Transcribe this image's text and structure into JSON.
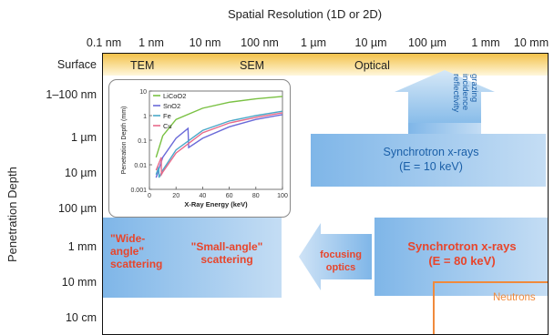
{
  "x_axis": {
    "title": "Spatial Resolution (1D or 2D)",
    "ticks": [
      "0.1 nm",
      "1 nm",
      "10 nm",
      "100 nm",
      "1 µm",
      "10 µm",
      "100 µm",
      "1 mm",
      "10 mm"
    ]
  },
  "y_axis": {
    "title": "Penetration Depth",
    "ticks": [
      "Surface",
      "1–100 nm",
      "1 µm",
      "10 µm",
      "100 µm",
      "1 mm",
      "10 mm",
      "10 cm"
    ]
  },
  "surface_band": {
    "labels": [
      "TEM",
      "SEM",
      "Optical"
    ]
  },
  "synchrotron_10": {
    "line1": "Synchrotron x-rays",
    "line2": "(E = 10 keV)"
  },
  "grazing": {
    "line1": "grazing",
    "line2": "incidence",
    "line3": "reflectivity"
  },
  "synchrotron_80": {
    "line1": "Synchrotron x-rays",
    "line2": "(E = 80 keV)"
  },
  "focusing": {
    "line1": "focusing",
    "line2": "optics"
  },
  "wide_angle": {
    "line1": "\"Wide-",
    "line2": "angle\"",
    "line3": "scattering"
  },
  "small_angle": {
    "line1": "\"Small-angle\"",
    "line2": "scattering"
  },
  "neutrons": "Neutrons",
  "colors": {
    "red_text": "#e8452b",
    "blue_text": "#1a5fa8",
    "surface": "#f3c24a",
    "neutrons": "#f08a3c"
  },
  "chart_data": {
    "type": "line",
    "xlabel": "X-Ray Energy (keV)",
    "ylabel": "Penetration Depth (mm)",
    "xlim": [
      0,
      100
    ],
    "ylim": [
      0.001,
      10
    ],
    "yscale": "log",
    "xticks": [
      "0",
      "20",
      "40",
      "60",
      "80",
      "100"
    ],
    "yticks": [
      "0.001",
      "0.01",
      "0.1",
      "1",
      "10"
    ],
    "legend_position": "top-left",
    "series": [
      {
        "name": "LiCoO2",
        "color": "#7ac143",
        "x": [
          5,
          10,
          20,
          40,
          60,
          80,
          100
        ],
        "y": [
          0.02,
          0.15,
          0.7,
          2.0,
          3.5,
          4.8,
          6.0
        ]
      },
      {
        "name": "SnO2",
        "color": "#6a6ad8",
        "x": [
          5,
          10,
          20,
          29,
          29.5,
          40,
          60,
          80,
          100
        ],
        "y": [
          0.003,
          0.02,
          0.12,
          0.3,
          0.05,
          0.12,
          0.35,
          0.7,
          1.1
        ]
      },
      {
        "name": "Fe",
        "color": "#4aa8c8",
        "x": [
          5,
          7,
          7.2,
          10,
          20,
          40,
          60,
          80,
          100
        ],
        "y": [
          0.004,
          0.008,
          0.003,
          0.006,
          0.04,
          0.25,
          0.6,
          1.0,
          1.5
        ]
      },
      {
        "name": "Cu",
        "color": "#e86a8a",
        "x": [
          5,
          8.9,
          9.0,
          10,
          20,
          40,
          60,
          80,
          100
        ],
        "y": [
          0.006,
          0.02,
          0.004,
          0.005,
          0.03,
          0.2,
          0.5,
          0.85,
          1.3
        ]
      }
    ]
  }
}
